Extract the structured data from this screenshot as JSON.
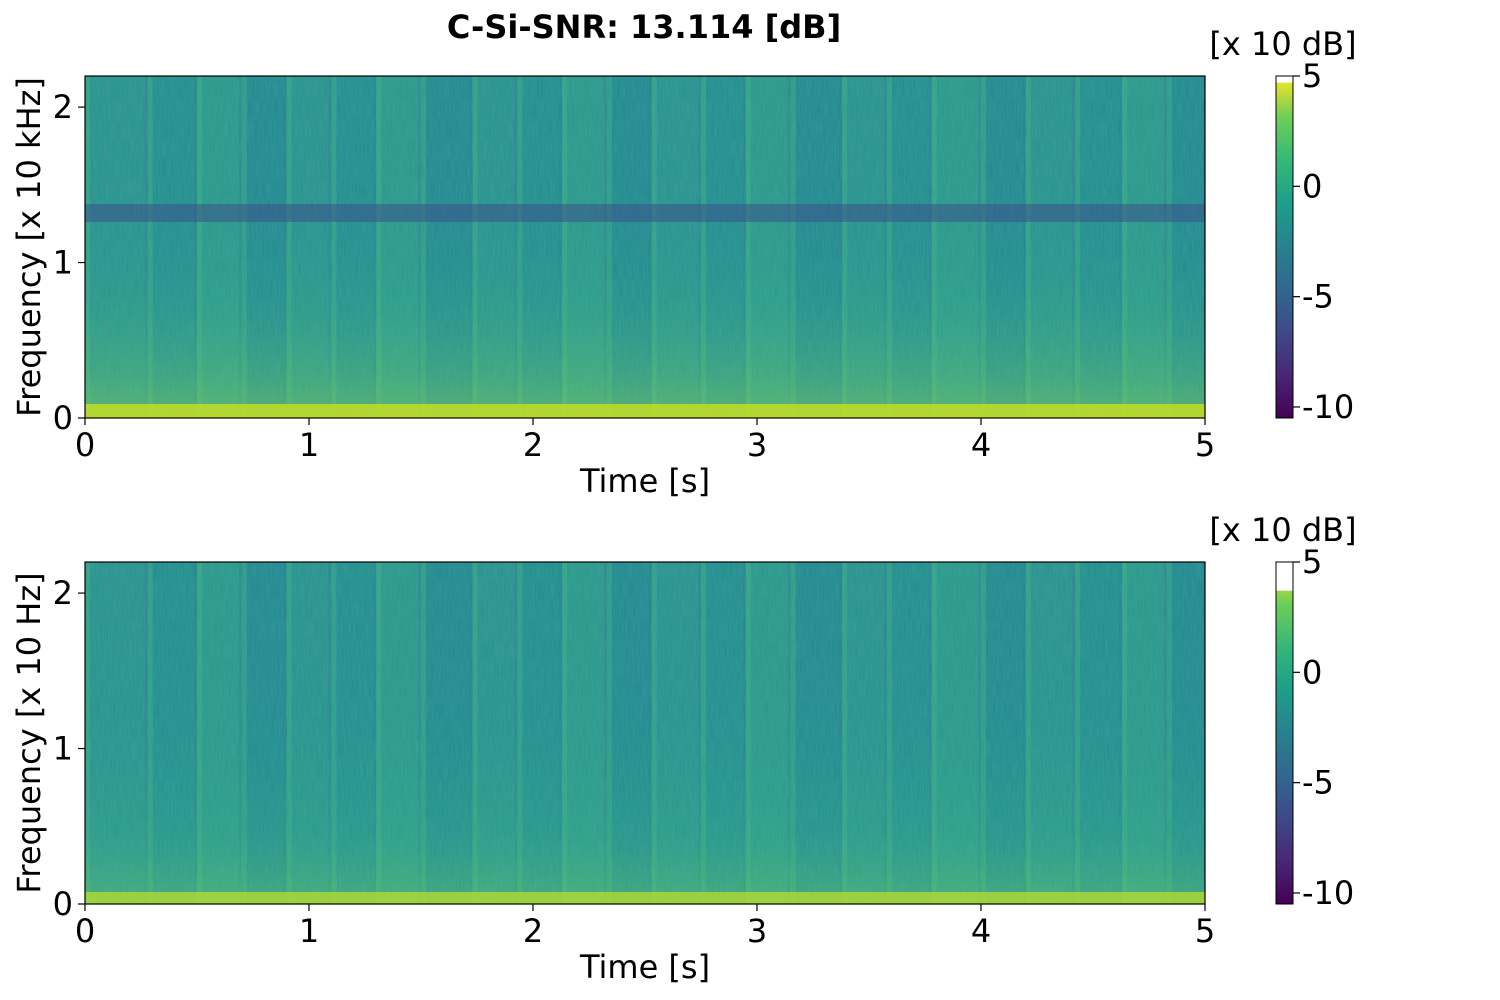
{
  "title": "C-Si-SNR: 13.114 [dB]",
  "colormap": "viridis",
  "chart_data": [
    {
      "type": "heatmap",
      "name": "top-spectrogram",
      "xlabel": "Time [s]",
      "ylabel": "Frequency [x 10 kHz]",
      "xlim": [
        0,
        5
      ],
      "ylim": [
        0,
        2.2
      ],
      "xticks": [
        "0",
        "1",
        "2",
        "3",
        "4",
        "5"
      ],
      "yticks": [
        "0",
        "1",
        "2"
      ],
      "colorbar": {
        "label": "[x 10 dB]",
        "range": [
          -10.5,
          5
        ],
        "ticks": [
          "5",
          "0",
          "-5",
          "-10"
        ],
        "saturation_top": 4.7
      },
      "dark_band_frequency": 1.3,
      "segment_boundaries_s": [
        0,
        0.28,
        0.5,
        0.7,
        0.9,
        1.1,
        1.3,
        1.5,
        1.73,
        1.93,
        2.13,
        2.33,
        2.53,
        2.75,
        2.95,
        3.15,
        3.38,
        3.58,
        3.78,
        4.0,
        4.2,
        4.42,
        4.63,
        4.83,
        5.0
      ],
      "grid": false
    },
    {
      "type": "heatmap",
      "name": "bottom-spectrogram",
      "xlabel": "Time [s]",
      "ylabel": "Frequency [x 10 Hz]",
      "xlim": [
        0,
        5
      ],
      "ylim": [
        0,
        2.2
      ],
      "xticks": [
        "0",
        "1",
        "2",
        "3",
        "4",
        "5"
      ],
      "yticks": [
        "0",
        "1",
        "2"
      ],
      "colorbar": {
        "label": "[x 10 dB]",
        "range": [
          -10.5,
          5
        ],
        "ticks": [
          "5",
          "0",
          "-5",
          "-10"
        ],
        "saturation_top": 3.7
      },
      "segment_boundaries_s": [
        0,
        0.28,
        0.5,
        0.7,
        0.9,
        1.1,
        1.3,
        1.5,
        1.73,
        1.93,
        2.13,
        2.33,
        2.53,
        2.75,
        2.95,
        3.15,
        3.38,
        3.58,
        3.78,
        4.0,
        4.2,
        4.42,
        4.63,
        4.83,
        5.0
      ],
      "grid": false
    }
  ]
}
